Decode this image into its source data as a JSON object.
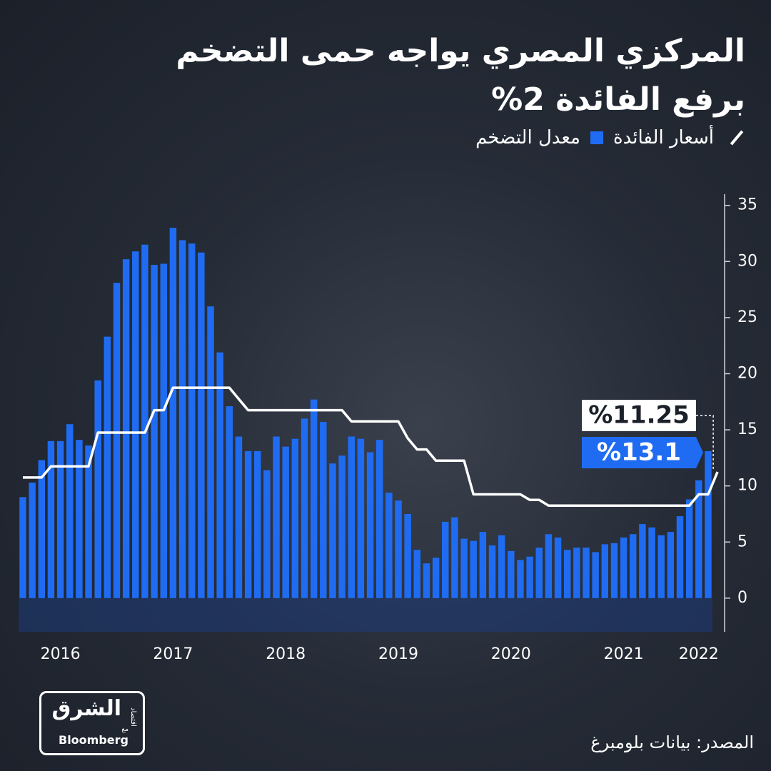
{
  "chart_data": {
    "type": "bar",
    "title_lines": [
      "المركزي المصري يواجه حمى التضخم",
      "برفع الفائدة 2%"
    ],
    "source": "المصدر: بيانات بلومبرغ",
    "categories": [
      null,
      null,
      null,
      null,
      "2016",
      null,
      null,
      null,
      null,
      null,
      null,
      null,
      null,
      null,
      null,
      null,
      "2017",
      null,
      null,
      null,
      null,
      null,
      null,
      null,
      null,
      null,
      null,
      null,
      "2018",
      null,
      null,
      null,
      null,
      null,
      null,
      null,
      null,
      null,
      null,
      null,
      "2019",
      null,
      null,
      null,
      null,
      null,
      null,
      null,
      null,
      null,
      null,
      null,
      "2020",
      null,
      null,
      null,
      null,
      null,
      null,
      null,
      null,
      null,
      null,
      null,
      "2021",
      null,
      null,
      null,
      null,
      null,
      null,
      null,
      "2022",
      null,
      null
    ],
    "series": [
      {
        "name": "معدل التضخم",
        "type": "bar",
        "color": "#1f6cf2",
        "values": [
          9.0,
          10.3,
          12.3,
          14.0,
          14.0,
          15.5,
          14.1,
          13.6,
          19.4,
          23.3,
          28.1,
          30.2,
          30.9,
          31.5,
          29.7,
          29.8,
          33.0,
          31.9,
          31.6,
          30.8,
          26.0,
          21.9,
          17.1,
          14.4,
          13.1,
          13.1,
          11.4,
          14.4,
          13.5,
          14.2,
          16.0,
          17.7,
          15.7,
          12.0,
          12.7,
          14.4,
          14.2,
          13.0,
          14.1,
          9.4,
          8.7,
          7.5,
          4.3,
          3.1,
          3.6,
          6.8,
          7.2,
          5.3,
          5.1,
          5.9,
          4.7,
          5.6,
          4.2,
          3.4,
          3.7,
          4.5,
          5.7,
          5.4,
          4.3,
          4.5,
          4.5,
          4.1,
          4.8,
          4.9,
          5.4,
          5.7,
          6.6,
          6.3,
          5.6,
          5.9,
          7.3,
          8.8,
          10.5,
          13.1,
          null
        ],
        "value_labels": [
          null,
          null,
          null,
          null,
          null,
          null,
          null,
          null,
          null,
          null,
          null,
          null,
          null,
          null,
          null,
          null,
          null,
          null,
          null,
          null,
          null,
          null,
          null,
          null,
          null,
          null,
          null,
          null,
          null,
          null,
          null,
          null,
          null,
          null,
          null,
          null,
          null,
          null,
          null,
          null,
          null,
          null,
          null,
          null,
          null,
          null,
          null,
          null,
          null,
          null,
          null,
          null,
          null,
          null,
          null,
          null,
          null,
          null,
          null,
          null,
          null,
          null,
          null,
          null,
          null,
          null,
          null,
          null,
          null,
          null,
          null,
          null,
          null,
          "%13.1",
          null
        ]
      },
      {
        "name": "أسعار الفائدة",
        "type": "line",
        "color": "#ffffff",
        "values": [
          10.75,
          10.75,
          10.75,
          11.75,
          11.75,
          11.75,
          11.75,
          11.75,
          14.75,
          14.75,
          14.75,
          14.75,
          14.75,
          14.75,
          16.75,
          16.75,
          18.75,
          18.75,
          18.75,
          18.75,
          18.75,
          18.75,
          18.75,
          17.75,
          16.75,
          16.75,
          16.75,
          16.75,
          16.75,
          16.75,
          16.75,
          16.75,
          16.75,
          16.75,
          16.75,
          15.75,
          15.75,
          15.75,
          15.75,
          15.75,
          15.75,
          14.25,
          13.25,
          13.25,
          12.25,
          12.25,
          12.25,
          12.25,
          9.25,
          9.25,
          9.25,
          9.25,
          9.25,
          9.25,
          8.75,
          8.75,
          8.25,
          8.25,
          8.25,
          8.25,
          8.25,
          8.25,
          8.25,
          8.25,
          8.25,
          8.25,
          8.25,
          8.25,
          8.25,
          8.25,
          8.25,
          8.25,
          9.25,
          9.25,
          11.25
        ],
        "value_labels": [
          null,
          null,
          null,
          null,
          null,
          null,
          null,
          null,
          null,
          null,
          null,
          null,
          null,
          null,
          null,
          null,
          null,
          null,
          null,
          null,
          null,
          null,
          null,
          null,
          null,
          null,
          null,
          null,
          null,
          null,
          null,
          null,
          null,
          null,
          null,
          null,
          null,
          null,
          null,
          null,
          null,
          null,
          null,
          null,
          null,
          null,
          null,
          null,
          null,
          null,
          null,
          null,
          null,
          null,
          null,
          null,
          null,
          null,
          null,
          null,
          null,
          null,
          null,
          null,
          null,
          null,
          null,
          null,
          null,
          null,
          null,
          null,
          null,
          null,
          "%11.25"
        ]
      }
    ],
    "ylim": [
      -3,
      36
    ],
    "yticks": [
      0,
      5,
      10,
      15,
      20,
      25,
      30,
      35
    ],
    "y_axis_side": "right"
  },
  "logo": {
    "name": "الشرق",
    "tag": "اقتصاد",
    "with": "مع",
    "partner": "Bloomberg"
  }
}
